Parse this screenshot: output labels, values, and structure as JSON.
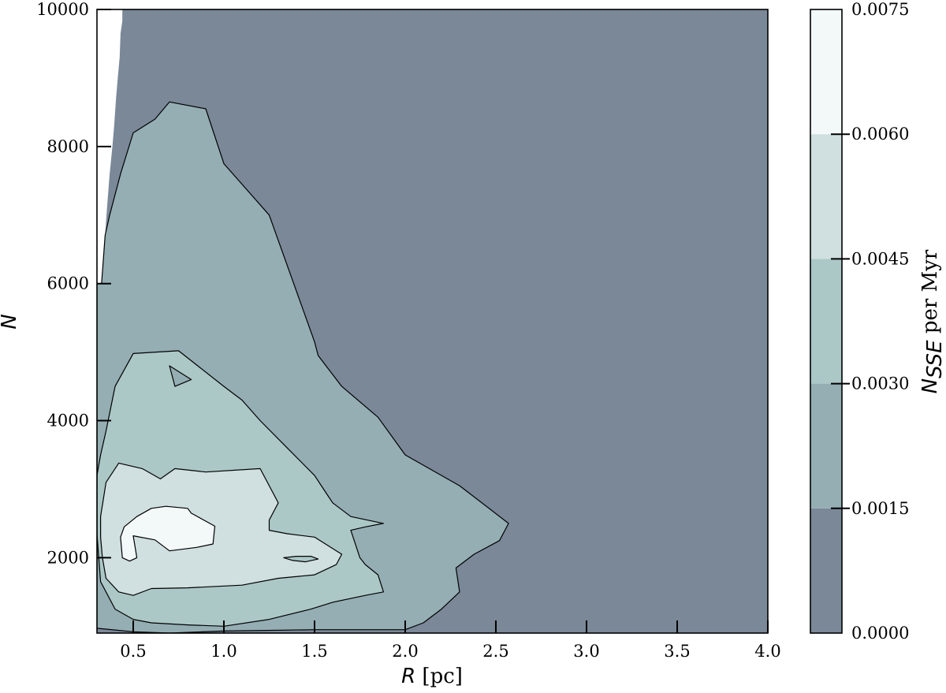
{
  "chart_data": {
    "type": "contour",
    "xlabel": {
      "var": "R",
      "unit": " [pc]"
    },
    "ylabel": "N",
    "xlim": [
      0.3,
      4.0
    ],
    "ylim": [
      900,
      10000
    ],
    "xticks": [
      0.5,
      1.0,
      1.5,
      2.0,
      2.5,
      3.0,
      3.5,
      4.0
    ],
    "xtick_labels": [
      "0.5",
      "1.0",
      "1.5",
      "2.0",
      "2.5",
      "3.0",
      "3.5",
      "4.0"
    ],
    "yticks": [
      2000,
      4000,
      6000,
      8000,
      10000
    ],
    "ytick_labels": [
      "2000",
      "4000",
      "6000",
      "8000",
      "10000"
    ],
    "colorbar": {
      "label_main": "N",
      "label_sub": "SSE",
      "label_rest": " per Myr",
      "ticks": [
        0.0,
        0.0015,
        0.003,
        0.0045,
        0.006,
        0.0075
      ],
      "tick_labels": [
        "0.0000",
        "0.0015",
        "0.0030",
        "0.0045",
        "0.0060",
        "0.0075"
      ],
      "level_colors": [
        "#7a8898",
        "#94aeb3",
        "#abc8c7",
        "#d0dfdf",
        "#f3f8f8"
      ]
    },
    "levels": [
      {
        "name": "no-data-region",
        "color": "#ffffff",
        "points": [
          [
            0.3,
            10000
          ],
          [
            0.44,
            10000
          ],
          [
            0.44,
            9830
          ],
          [
            0.43,
            9650
          ],
          [
            0.425,
            9300
          ],
          [
            0.415,
            9000
          ],
          [
            0.405,
            8700
          ],
          [
            0.395,
            8300
          ],
          [
            0.385,
            8000
          ],
          [
            0.37,
            7600
          ],
          [
            0.355,
            7100
          ],
          [
            0.345,
            6700
          ],
          [
            0.335,
            6350
          ],
          [
            0.325,
            6000
          ],
          [
            0.3,
            6000
          ]
        ]
      },
      {
        "name": "level-0.0015",
        "color": "#94aeb3",
        "points": [
          [
            0.3,
            6000
          ],
          [
            0.325,
            6000
          ],
          [
            0.335,
            6350
          ],
          [
            0.345,
            6700
          ],
          [
            0.37,
            7000
          ],
          [
            0.43,
            7600
          ],
          [
            0.5,
            8200
          ],
          [
            0.62,
            8400
          ],
          [
            0.7,
            8650
          ],
          [
            0.9,
            8550
          ],
          [
            1.0,
            7750
          ],
          [
            1.25,
            7000
          ],
          [
            1.5,
            5150
          ],
          [
            1.52,
            4950
          ],
          [
            1.65,
            4500
          ],
          [
            1.85,
            4050
          ],
          [
            2.0,
            3500
          ],
          [
            2.3,
            3050
          ],
          [
            2.57,
            2500
          ],
          [
            2.52,
            2250
          ],
          [
            2.38,
            2050
          ],
          [
            2.28,
            1850
          ],
          [
            2.3,
            1500
          ],
          [
            2.2,
            1250
          ],
          [
            2.1,
            1050
          ],
          [
            2.0,
            950
          ],
          [
            1.5,
            950
          ],
          [
            1.0,
            930
          ],
          [
            0.7,
            900
          ],
          [
            0.5,
            920
          ],
          [
            0.3,
            970
          ]
        ]
      },
      {
        "name": "level-0.0030",
        "color": "#abc8c7",
        "points": [
          [
            0.3,
            3200
          ],
          [
            0.32,
            3500
          ],
          [
            0.35,
            3850
          ],
          [
            0.4,
            4500
          ],
          [
            0.5,
            4980
          ],
          [
            0.75,
            5020
          ],
          [
            1.0,
            4500
          ],
          [
            1.1,
            4300
          ],
          [
            1.2,
            4000
          ],
          [
            1.35,
            3600
          ],
          [
            1.5,
            3200
          ],
          [
            1.55,
            3000
          ],
          [
            1.6,
            2800
          ],
          [
            1.7,
            2600
          ],
          [
            1.88,
            2500
          ],
          [
            1.78,
            2450
          ],
          [
            1.7,
            2400
          ],
          [
            1.75,
            2000
          ],
          [
            1.78,
            1900
          ],
          [
            1.85,
            1750
          ],
          [
            1.88,
            1500
          ],
          [
            1.78,
            1450
          ],
          [
            1.6,
            1350
          ],
          [
            1.48,
            1250
          ],
          [
            1.25,
            1100
          ],
          [
            1.0,
            1000
          ],
          [
            0.8,
            1020
          ],
          [
            0.6,
            1050
          ],
          [
            0.5,
            1100
          ],
          [
            0.4,
            1250
          ],
          [
            0.32,
            1650
          ],
          [
            0.3,
            2350
          ]
        ],
        "hole": [
          [
            0.7,
            4800
          ],
          [
            0.73,
            4500
          ],
          [
            0.82,
            4600
          ],
          [
            0.7,
            4800
          ]
        ]
      },
      {
        "name": "level-0.0045",
        "color": "#d0dfdf",
        "points": [
          [
            0.32,
            2600
          ],
          [
            0.35,
            3100
          ],
          [
            0.42,
            3380
          ],
          [
            0.55,
            3300
          ],
          [
            0.65,
            3150
          ],
          [
            0.73,
            3300
          ],
          [
            0.9,
            3250
          ],
          [
            1.2,
            3300
          ],
          [
            1.3,
            2800
          ],
          [
            1.25,
            2550
          ],
          [
            1.25,
            2400
          ],
          [
            1.35,
            2350
          ],
          [
            1.5,
            2300
          ],
          [
            1.65,
            2050
          ],
          [
            1.62,
            1900
          ],
          [
            1.5,
            1750
          ],
          [
            1.3,
            1700
          ],
          [
            1.1,
            1600
          ],
          [
            0.8,
            1560
          ],
          [
            0.6,
            1550
          ],
          [
            0.5,
            1450
          ],
          [
            0.42,
            1500
          ],
          [
            0.35,
            1700
          ],
          [
            0.33,
            2000
          ],
          [
            0.32,
            2300
          ]
        ],
        "hole": [
          [
            1.33,
            2000
          ],
          [
            1.38,
            1960
          ],
          [
            1.45,
            1940
          ],
          [
            1.52,
            1980
          ],
          [
            1.48,
            2020
          ],
          [
            1.4,
            2020
          ],
          [
            1.33,
            2000
          ]
        ]
      },
      {
        "name": "level-0.0060",
        "color": "#f3f8f8",
        "points": [
          [
            0.45,
            2450
          ],
          [
            0.52,
            2600
          ],
          [
            0.6,
            2720
          ],
          [
            0.68,
            2750
          ],
          [
            0.8,
            2720
          ],
          [
            0.82,
            2650
          ],
          [
            0.95,
            2460
          ],
          [
            0.94,
            2200
          ],
          [
            0.85,
            2150
          ],
          [
            0.7,
            2100
          ],
          [
            0.62,
            2260
          ],
          [
            0.5,
            2320
          ],
          [
            0.52,
            2000
          ],
          [
            0.48,
            1950
          ],
          [
            0.44,
            2000
          ],
          [
            0.43,
            2300
          ]
        ]
      }
    ]
  }
}
